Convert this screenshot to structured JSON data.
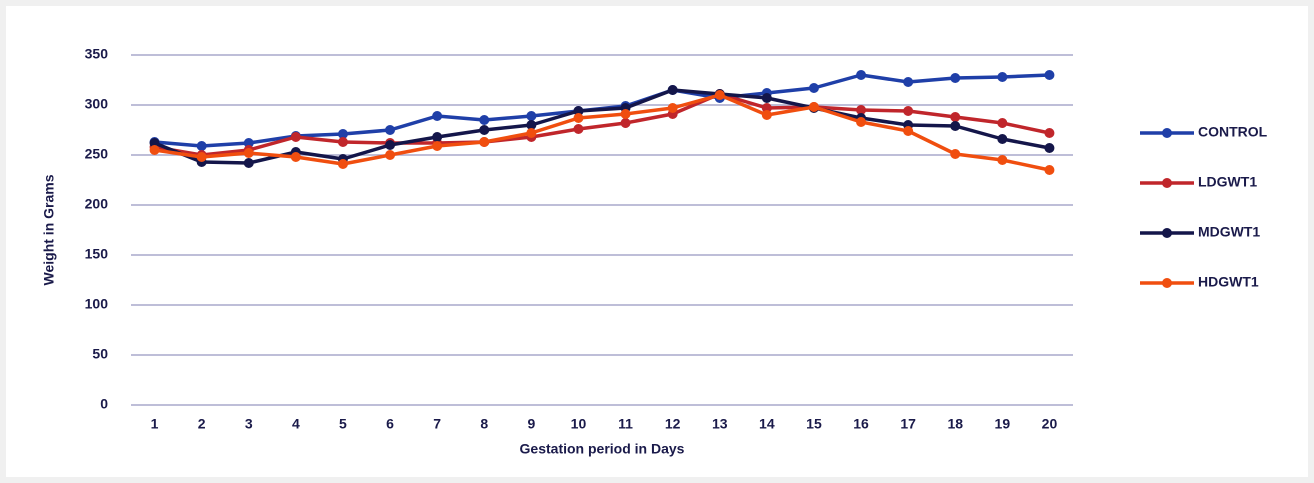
{
  "chart_data": {
    "type": "line",
    "x_label": "Gestation period in Days",
    "y_label": "Weight in Grams",
    "categories": [
      "1",
      "2",
      "3",
      "4",
      "5",
      "6",
      "7",
      "8",
      "9",
      "10",
      "11",
      "12",
      "13",
      "14",
      "15",
      "16",
      "17",
      "18",
      "19",
      "20"
    ],
    "ylim": [
      0,
      350
    ],
    "yticks": [
      0,
      50,
      100,
      150,
      200,
      250,
      300,
      350
    ],
    "grid": true,
    "legend": "right",
    "series": [
      {
        "name": "CONTROL",
        "color": "#1f3fa8",
        "values": [
          263,
          259,
          262,
          269,
          271,
          275,
          289,
          285,
          289,
          294,
          299,
          315,
          307,
          312,
          317,
          330,
          323,
          327,
          328,
          330
        ]
      },
      {
        "name": "LDGWT1",
        "color": "#c0262b",
        "values": [
          258,
          250,
          255,
          268,
          263,
          262,
          262,
          263,
          268,
          276,
          282,
          291,
          311,
          297,
          298,
          295,
          294,
          288,
          282,
          272
        ]
      },
      {
        "name": "MDGWT1",
        "color": "#14164a",
        "values": [
          262,
          243,
          242,
          253,
          246,
          260,
          268,
          275,
          280,
          294,
          297,
          315,
          311,
          307,
          297,
          287,
          280,
          279,
          266,
          257
        ]
      },
      {
        "name": "HDGWT1",
        "color": "#f04e0f",
        "values": [
          255,
          248,
          252,
          248,
          241,
          250,
          259,
          263,
          272,
          287,
          291,
          297,
          310,
          290,
          298,
          283,
          274,
          251,
          245,
          235
        ]
      }
    ]
  }
}
